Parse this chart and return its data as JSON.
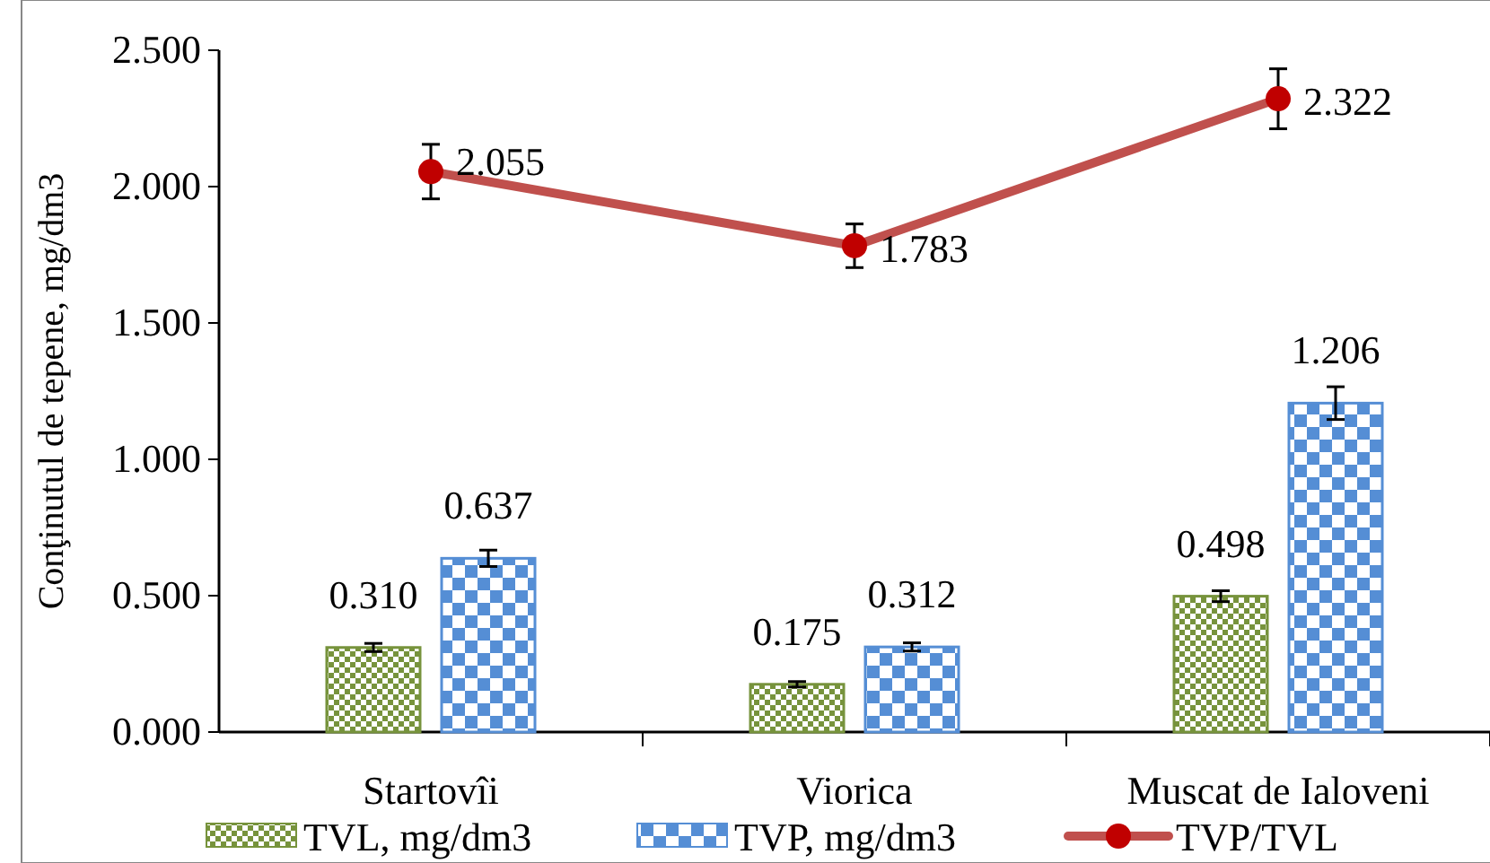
{
  "chart_data": {
    "type": "bar",
    "ylabel": "Conţinutul de tepene, mg/dm3",
    "categories": [
      "Startovîi",
      "Viorica",
      "Muscat de Ialoveni"
    ],
    "series": [
      {
        "name": "TVL, mg/dm3",
        "color": "#77933c",
        "values": [
          0.31,
          0.175,
          0.498
        ],
        "value_labels": [
          "0.310",
          "0.175",
          "0.498"
        ],
        "errors": [
          0.015,
          0.01,
          0.02
        ]
      },
      {
        "name": "TVP, mg/dm3",
        "color": "#558ed5",
        "values": [
          0.637,
          0.312,
          1.206
        ],
        "value_labels": [
          "0.637",
          "0.312",
          "1.206"
        ],
        "errors": [
          0.03,
          0.015,
          0.06
        ]
      },
      {
        "name": "TVP/TVL",
        "type": "line",
        "color": "#c0504d",
        "values": [
          2.055,
          1.783,
          2.322
        ],
        "value_labels": [
          "2.055",
          "1.783",
          "2.322"
        ],
        "errors": [
          0.1,
          0.08,
          0.11
        ],
        "marker": "circle"
      }
    ],
    "ylim": [
      0,
      2.5
    ],
    "yticks": [
      {
        "value": 0,
        "label": "0.000"
      },
      {
        "value": 0.5,
        "label": "0.500"
      },
      {
        "value": 1,
        "label": "1.000"
      },
      {
        "value": 1.5,
        "label": "1.500"
      },
      {
        "value": 2,
        "label": "2.000"
      },
      {
        "value": 2.5,
        "label": "2.500"
      }
    ],
    "grid": false,
    "legend": "bottom"
  }
}
